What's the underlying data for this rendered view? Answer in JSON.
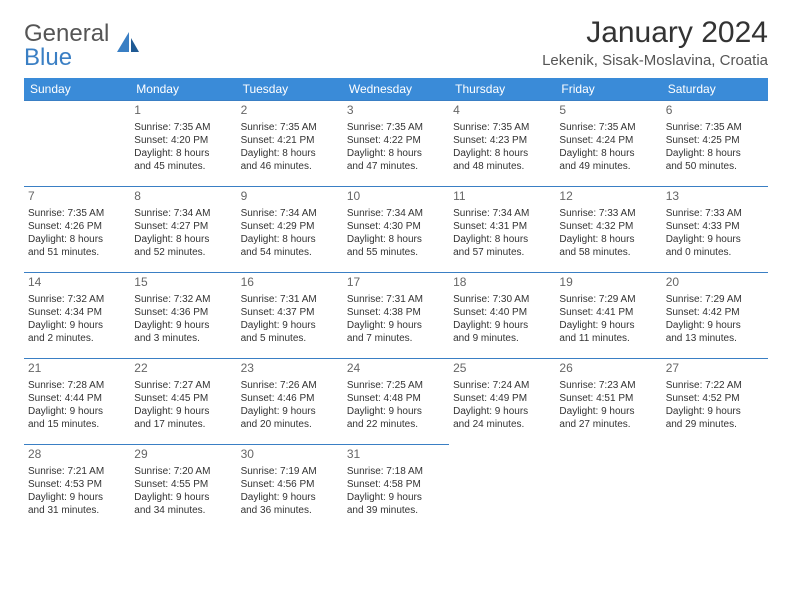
{
  "brand": {
    "line1": "General",
    "line2": "Blue",
    "line1_color": "#555555",
    "line2_color": "#3a7fc4",
    "icon_color": "#3a7fc4"
  },
  "title": "January 2024",
  "location": "Lekenik, Sisak-Moslavina, Croatia",
  "colors": {
    "header_bg": "#3a8bd8",
    "header_text": "#ffffff",
    "border": "#3a7fc4",
    "body_text": "#333333",
    "daynum": "#666666",
    "background": "#ffffff"
  },
  "typography": {
    "title_fontsize": 30,
    "location_fontsize": 15,
    "dayname_fontsize": 12,
    "cell_fontsize": 10
  },
  "day_names": [
    "Sunday",
    "Monday",
    "Tuesday",
    "Wednesday",
    "Thursday",
    "Friday",
    "Saturday"
  ],
  "weeks": [
    [
      null,
      {
        "n": "1",
        "sr": "Sunrise: 7:35 AM",
        "ss": "Sunset: 4:20 PM",
        "d1": "Daylight: 8 hours",
        "d2": "and 45 minutes."
      },
      {
        "n": "2",
        "sr": "Sunrise: 7:35 AM",
        "ss": "Sunset: 4:21 PM",
        "d1": "Daylight: 8 hours",
        "d2": "and 46 minutes."
      },
      {
        "n": "3",
        "sr": "Sunrise: 7:35 AM",
        "ss": "Sunset: 4:22 PM",
        "d1": "Daylight: 8 hours",
        "d2": "and 47 minutes."
      },
      {
        "n": "4",
        "sr": "Sunrise: 7:35 AM",
        "ss": "Sunset: 4:23 PM",
        "d1": "Daylight: 8 hours",
        "d2": "and 48 minutes."
      },
      {
        "n": "5",
        "sr": "Sunrise: 7:35 AM",
        "ss": "Sunset: 4:24 PM",
        "d1": "Daylight: 8 hours",
        "d2": "and 49 minutes."
      },
      {
        "n": "6",
        "sr": "Sunrise: 7:35 AM",
        "ss": "Sunset: 4:25 PM",
        "d1": "Daylight: 8 hours",
        "d2": "and 50 minutes."
      }
    ],
    [
      {
        "n": "7",
        "sr": "Sunrise: 7:35 AM",
        "ss": "Sunset: 4:26 PM",
        "d1": "Daylight: 8 hours",
        "d2": "and 51 minutes."
      },
      {
        "n": "8",
        "sr": "Sunrise: 7:34 AM",
        "ss": "Sunset: 4:27 PM",
        "d1": "Daylight: 8 hours",
        "d2": "and 52 minutes."
      },
      {
        "n": "9",
        "sr": "Sunrise: 7:34 AM",
        "ss": "Sunset: 4:29 PM",
        "d1": "Daylight: 8 hours",
        "d2": "and 54 minutes."
      },
      {
        "n": "10",
        "sr": "Sunrise: 7:34 AM",
        "ss": "Sunset: 4:30 PM",
        "d1": "Daylight: 8 hours",
        "d2": "and 55 minutes."
      },
      {
        "n": "11",
        "sr": "Sunrise: 7:34 AM",
        "ss": "Sunset: 4:31 PM",
        "d1": "Daylight: 8 hours",
        "d2": "and 57 minutes."
      },
      {
        "n": "12",
        "sr": "Sunrise: 7:33 AM",
        "ss": "Sunset: 4:32 PM",
        "d1": "Daylight: 8 hours",
        "d2": "and 58 minutes."
      },
      {
        "n": "13",
        "sr": "Sunrise: 7:33 AM",
        "ss": "Sunset: 4:33 PM",
        "d1": "Daylight: 9 hours",
        "d2": "and 0 minutes."
      }
    ],
    [
      {
        "n": "14",
        "sr": "Sunrise: 7:32 AM",
        "ss": "Sunset: 4:34 PM",
        "d1": "Daylight: 9 hours",
        "d2": "and 2 minutes."
      },
      {
        "n": "15",
        "sr": "Sunrise: 7:32 AM",
        "ss": "Sunset: 4:36 PM",
        "d1": "Daylight: 9 hours",
        "d2": "and 3 minutes."
      },
      {
        "n": "16",
        "sr": "Sunrise: 7:31 AM",
        "ss": "Sunset: 4:37 PM",
        "d1": "Daylight: 9 hours",
        "d2": "and 5 minutes."
      },
      {
        "n": "17",
        "sr": "Sunrise: 7:31 AM",
        "ss": "Sunset: 4:38 PM",
        "d1": "Daylight: 9 hours",
        "d2": "and 7 minutes."
      },
      {
        "n": "18",
        "sr": "Sunrise: 7:30 AM",
        "ss": "Sunset: 4:40 PM",
        "d1": "Daylight: 9 hours",
        "d2": "and 9 minutes."
      },
      {
        "n": "19",
        "sr": "Sunrise: 7:29 AM",
        "ss": "Sunset: 4:41 PM",
        "d1": "Daylight: 9 hours",
        "d2": "and 11 minutes."
      },
      {
        "n": "20",
        "sr": "Sunrise: 7:29 AM",
        "ss": "Sunset: 4:42 PM",
        "d1": "Daylight: 9 hours",
        "d2": "and 13 minutes."
      }
    ],
    [
      {
        "n": "21",
        "sr": "Sunrise: 7:28 AM",
        "ss": "Sunset: 4:44 PM",
        "d1": "Daylight: 9 hours",
        "d2": "and 15 minutes."
      },
      {
        "n": "22",
        "sr": "Sunrise: 7:27 AM",
        "ss": "Sunset: 4:45 PM",
        "d1": "Daylight: 9 hours",
        "d2": "and 17 minutes."
      },
      {
        "n": "23",
        "sr": "Sunrise: 7:26 AM",
        "ss": "Sunset: 4:46 PM",
        "d1": "Daylight: 9 hours",
        "d2": "and 20 minutes."
      },
      {
        "n": "24",
        "sr": "Sunrise: 7:25 AM",
        "ss": "Sunset: 4:48 PM",
        "d1": "Daylight: 9 hours",
        "d2": "and 22 minutes."
      },
      {
        "n": "25",
        "sr": "Sunrise: 7:24 AM",
        "ss": "Sunset: 4:49 PM",
        "d1": "Daylight: 9 hours",
        "d2": "and 24 minutes."
      },
      {
        "n": "26",
        "sr": "Sunrise: 7:23 AM",
        "ss": "Sunset: 4:51 PM",
        "d1": "Daylight: 9 hours",
        "d2": "and 27 minutes."
      },
      {
        "n": "27",
        "sr": "Sunrise: 7:22 AM",
        "ss": "Sunset: 4:52 PM",
        "d1": "Daylight: 9 hours",
        "d2": "and 29 minutes."
      }
    ],
    [
      {
        "n": "28",
        "sr": "Sunrise: 7:21 AM",
        "ss": "Sunset: 4:53 PM",
        "d1": "Daylight: 9 hours",
        "d2": "and 31 minutes."
      },
      {
        "n": "29",
        "sr": "Sunrise: 7:20 AM",
        "ss": "Sunset: 4:55 PM",
        "d1": "Daylight: 9 hours",
        "d2": "and 34 minutes."
      },
      {
        "n": "30",
        "sr": "Sunrise: 7:19 AM",
        "ss": "Sunset: 4:56 PM",
        "d1": "Daylight: 9 hours",
        "d2": "and 36 minutes."
      },
      {
        "n": "31",
        "sr": "Sunrise: 7:18 AM",
        "ss": "Sunset: 4:58 PM",
        "d1": "Daylight: 9 hours",
        "d2": "and 39 minutes."
      },
      null,
      null,
      null
    ]
  ]
}
